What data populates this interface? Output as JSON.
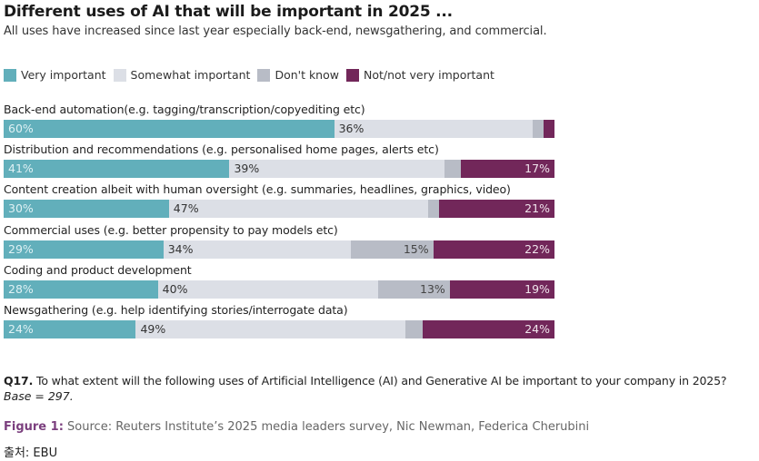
{
  "chart_data": {
    "type": "bar",
    "orientation": "horizontal-stacked-100",
    "title": "Different uses of AI that will be important in 2025 ...",
    "subtitle": "All uses have increased since last year especially back-end, newsgathering, and commercial.",
    "xlabel": "",
    "ylabel": "",
    "xlim": [
      0,
      100
    ],
    "legend_position": "top-left",
    "categories": [
      "Back-end automation(e.g. tagging/transcription/copyediting etc)",
      "Distribution and recommendations (e.g. personalised home pages, alerts etc)",
      "Content creation albeit with human oversight (e.g. summaries, headlines, graphics, video)",
      "Commercial uses (e.g. better propensity to pay models etc)",
      "Coding and product development",
      "Newsgathering (e.g. help identifying stories/interrogate data)"
    ],
    "series": [
      {
        "name": "Very important",
        "color": "#62afbb",
        "label_color": "#dff1f4",
        "values": [
          60,
          41,
          30,
          29,
          28,
          24
        ],
        "labels": [
          "60%",
          "41%",
          "30%",
          "29%",
          "28%",
          "24%"
        ]
      },
      {
        "name": "Somewhat important",
        "color": "#dcdfe6",
        "label_color": "#333333",
        "values": [
          36,
          39,
          47,
          34,
          40,
          49
        ],
        "labels": [
          "36%",
          "39%",
          "47%",
          "34%",
          "40%",
          "49%"
        ]
      },
      {
        "name": "Don't know",
        "color": "#b8bcc6",
        "label_color": "#444444",
        "values": [
          2,
          3,
          2,
          15,
          13,
          3
        ],
        "labels": [
          "",
          "",
          "",
          "15%",
          "13%",
          ""
        ]
      },
      {
        "name": "Not/not very important",
        "color": "#72275a",
        "label_color": "#f0e4ec",
        "values": [
          2,
          17,
          21,
          22,
          19,
          24
        ],
        "labels": [
          "",
          "17%",
          "21%",
          "22%",
          "19%",
          "24%"
        ]
      }
    ]
  },
  "footer": {
    "question_id": "Q17.",
    "question_text": "To what extent will the following uses of Artificial Intelligence (AI) and Generative AI be important to your company in 2025?",
    "base": "Base = 297.",
    "figure_label": "Figure 1:",
    "figure_text": "Source: Reuters Institute’s 2025 media leaders survey, Nic Newman, Federica Cherubini",
    "source_credit": "출처:  EBU"
  }
}
